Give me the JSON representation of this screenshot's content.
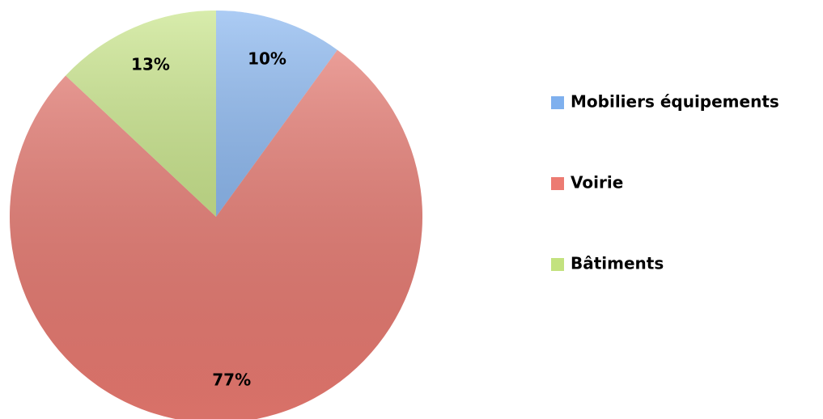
{
  "chart_data": {
    "type": "pie",
    "categories": [
      "Mobiliers équipements",
      "Voirie",
      "Bâtiments"
    ],
    "values": [
      10,
      77,
      13
    ],
    "value_labels": [
      "10%",
      "77%",
      "13%"
    ],
    "colors": [
      "#7fb0ee",
      "#ec7b72",
      "#c3e27f"
    ],
    "legend": "right"
  }
}
